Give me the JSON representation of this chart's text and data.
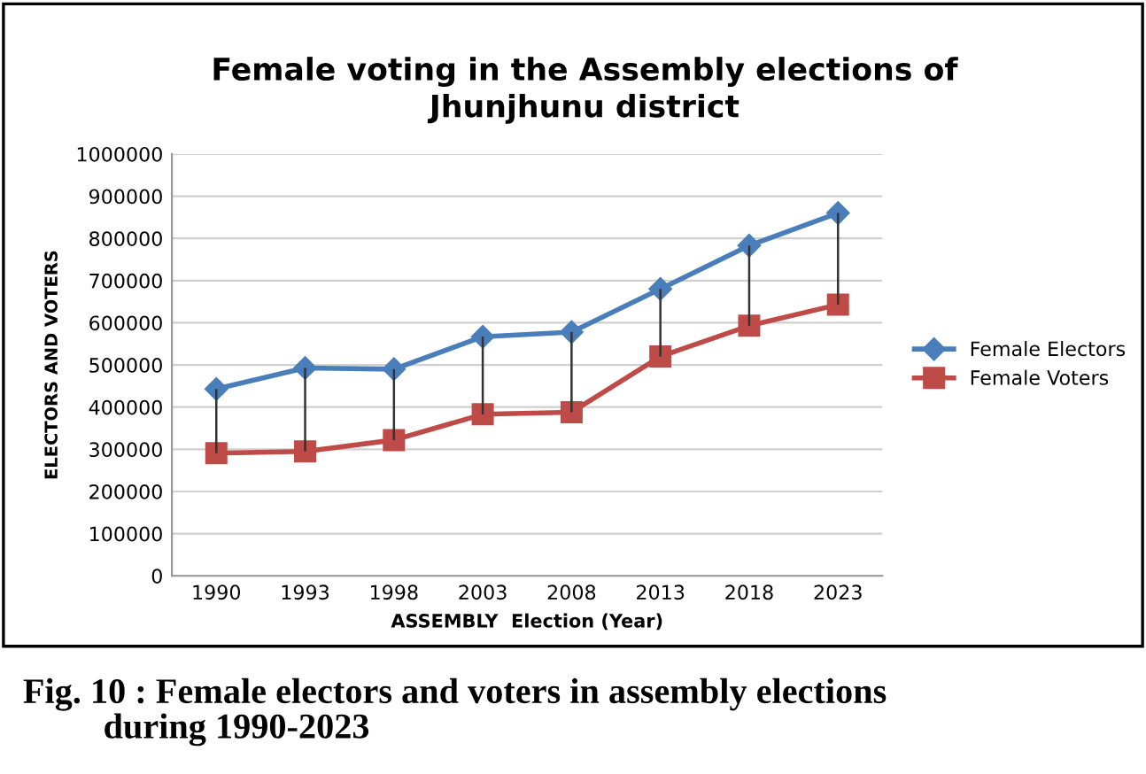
{
  "chart_data": {
    "type": "line",
    "title": "Female voting in the Assembly elections of\nJhunjhunu district",
    "xlabel": "ASSEMBLY  Election (Year)",
    "ylabel": "ELECTORS AND VOTERS",
    "categories": [
      "1990",
      "1993",
      "1998",
      "2003",
      "2008",
      "2013",
      "2018",
      "2023"
    ],
    "series": [
      {
        "name": "Female Electors",
        "color": "#4a7ebb",
        "marker": "diamond",
        "values": [
          443000,
          493000,
          490000,
          567000,
          578000,
          680000,
          783000,
          860000
        ]
      },
      {
        "name": "Female Voters",
        "color": "#be4b48",
        "marker": "square",
        "values": [
          291000,
          295000,
          322000,
          383000,
          388000,
          520000,
          593000,
          643000
        ],
        "errors": [
          [
            291000,
            443000
          ],
          [
            295000,
            493000
          ],
          [
            322000,
            490000
          ],
          [
            383000,
            567000
          ],
          [
            388000,
            578000
          ],
          [
            520000,
            680000
          ],
          [
            593000,
            783000
          ],
          [
            643000,
            860000
          ]
        ]
      }
    ],
    "ylim": [
      0,
      1000000
    ],
    "yticks": [
      0,
      100000,
      200000,
      300000,
      400000,
      500000,
      600000,
      700000,
      800000,
      900000,
      1000000
    ],
    "grid": "y",
    "legend": "right",
    "annotations": [
      "Fig. 10 : Female electors and voters in assembly elections\n         during 1990-2023"
    ]
  }
}
